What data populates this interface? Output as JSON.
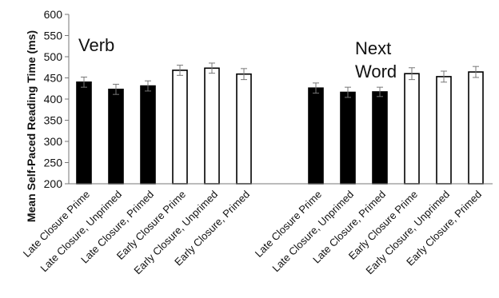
{
  "chart_data": {
    "type": "bar",
    "ylabel": "Mean Self-Paced Reading Time (ms)",
    "ylim": [
      200,
      600
    ],
    "yticks": [
      "200",
      "250",
      "300",
      "350",
      "400",
      "450",
      "500",
      "550",
      "600"
    ],
    "grid": false,
    "colors": {
      "filled": "#000000",
      "open": "#ffffff",
      "outline": "#000000"
    },
    "groups": [
      {
        "title_lines": [
          "Verb"
        ],
        "bars": [
          {
            "label": "Late Closure Prime",
            "value": 440,
            "error": 12,
            "style": "filled"
          },
          {
            "label": "Late Closure, Unprimed",
            "value": 423,
            "error": 12,
            "style": "filled"
          },
          {
            "label": "Late Closure, Primed",
            "value": 431,
            "error": 12,
            "style": "filled"
          },
          {
            "label": "Early Closure Prime",
            "value": 468,
            "error": 12,
            "style": "open"
          },
          {
            "label": "Early Closure, Unprimed",
            "value": 473,
            "error": 12,
            "style": "open"
          },
          {
            "label": "Early Closure, Primed",
            "value": 459,
            "error": 13,
            "style": "open"
          }
        ]
      },
      {
        "title_lines": [
          "Next",
          "Word"
        ],
        "bars": [
          {
            "label": "Late Closure Prime",
            "value": 426,
            "error": 12,
            "style": "filled"
          },
          {
            "label": "Late Closure, Unprimed",
            "value": 416,
            "error": 12,
            "style": "filled"
          },
          {
            "label": "Late Closure, Primed",
            "value": 417,
            "error": 11,
            "style": "filled"
          },
          {
            "label": "Early Closure Prime",
            "value": 460,
            "error": 14,
            "style": "open"
          },
          {
            "label": "Early Closure, Unprimed",
            "value": 453,
            "error": 13,
            "style": "open"
          },
          {
            "label": "Early Closure, Primed",
            "value": 464,
            "error": 13,
            "style": "open"
          }
        ]
      }
    ]
  }
}
